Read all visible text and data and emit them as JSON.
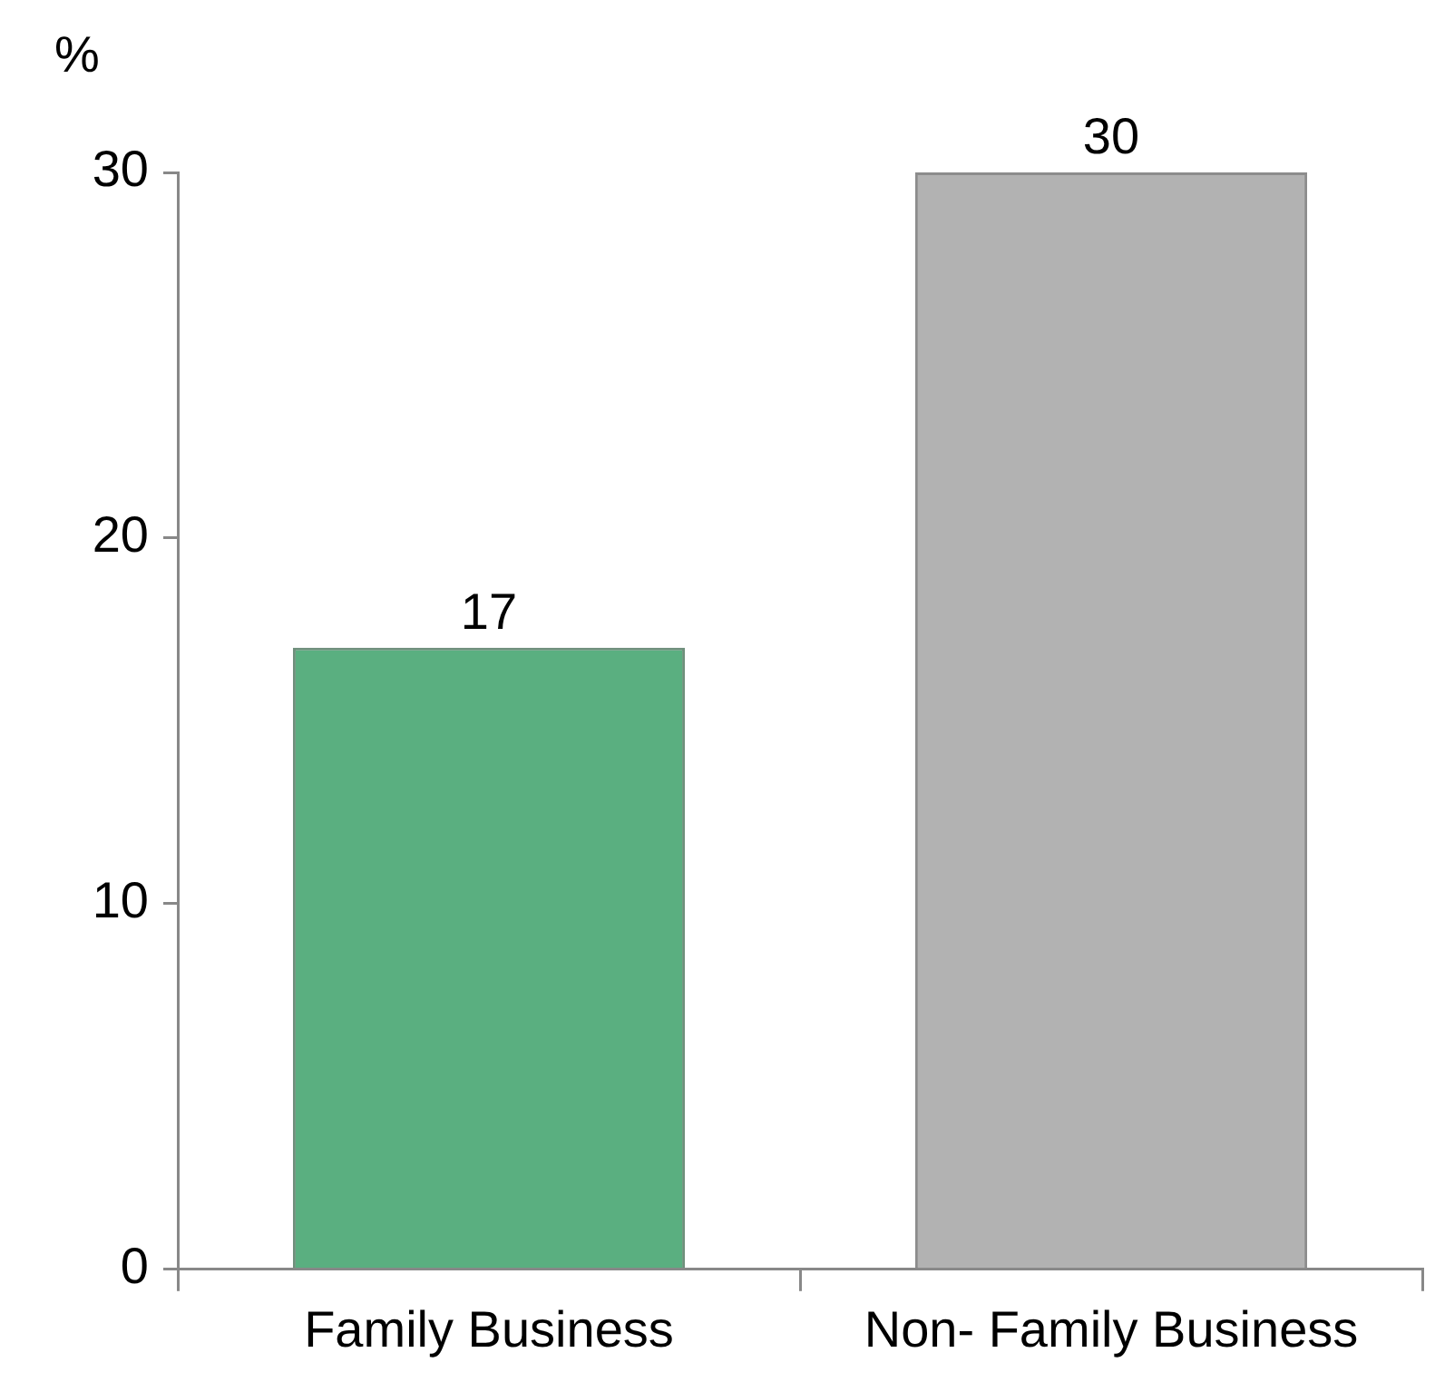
{
  "chart_data": {
    "type": "bar",
    "ylabel": "%",
    "categories": [
      "Family Business",
      "Non- Family Business"
    ],
    "values": [
      17,
      30
    ],
    "colors": [
      "#5aaf80",
      "#b2b2b2"
    ],
    "ylim": [
      0,
      30
    ],
    "yticks": [
      0,
      10,
      20,
      30
    ],
    "grid": false,
    "legend": false,
    "data_labels": true
  }
}
